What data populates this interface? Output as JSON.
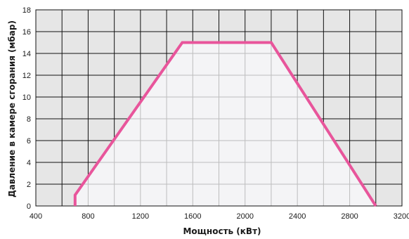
{
  "chart_data": {
    "type": "area",
    "xlabel": "Мощность (кВт)",
    "ylabel": "Давление в камере сгорания (мбар)",
    "xlim": [
      400,
      3200
    ],
    "ylim": [
      0,
      18
    ],
    "x_ticks": [
      400,
      800,
      1200,
      1600,
      2000,
      2400,
      2800,
      3200
    ],
    "y_ticks": [
      0,
      2,
      4,
      6,
      8,
      10,
      12,
      14,
      16,
      18
    ],
    "x_minor_step": 200,
    "y_minor_step": 2,
    "grid": true,
    "series": [
      {
        "points": [
          {
            "x": 700,
            "y": 0
          },
          {
            "x": 700,
            "y": 1
          },
          {
            "x": 1520,
            "y": 15
          },
          {
            "x": 2200,
            "y": 15
          },
          {
            "x": 3000,
            "y": 0
          }
        ]
      }
    ],
    "colors": {
      "line": "#e8559b",
      "inside_fill": "#f4f4f6",
      "outside_fill": "#e6e6e6",
      "grid_outside": "#111111",
      "grid_inside": "#bdbdbd"
    }
  }
}
